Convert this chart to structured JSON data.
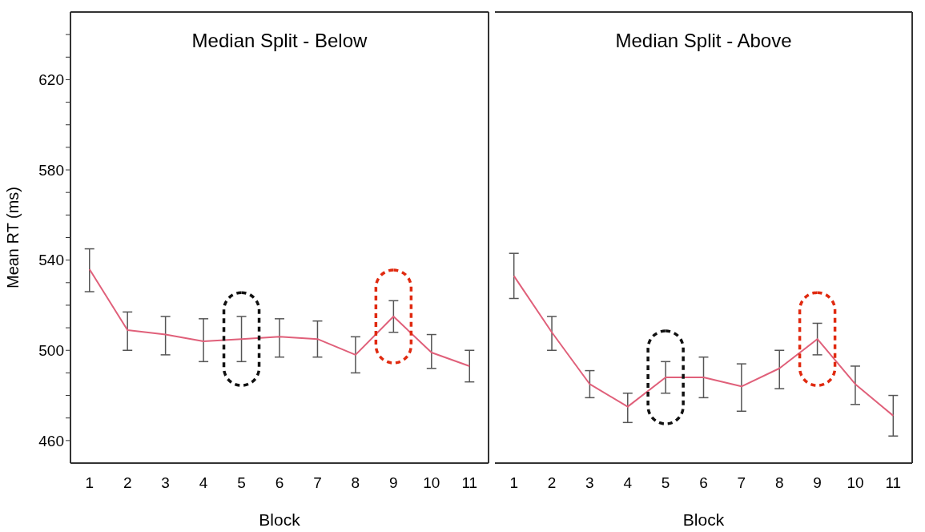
{
  "chart_data": [
    {
      "type": "line",
      "title": "Median Split - Below",
      "xlabel": "Block",
      "ylabel": "Mean RT (ms)",
      "categories": [
        "1",
        "2",
        "3",
        "4",
        "5",
        "6",
        "7",
        "8",
        "9",
        "10",
        "11"
      ],
      "marker": "none",
      "series": [
        {
          "color": "#e0607a",
          "values": [
            536,
            509,
            507,
            504,
            505,
            506,
            505,
            498,
            515,
            499,
            493
          ],
          "errors": [
            [
              526,
              545
            ],
            [
              500,
              517
            ],
            [
              498,
              515
            ],
            [
              495,
              514
            ],
            [
              495,
              515
            ],
            [
              497,
              514
            ],
            [
              497,
              513
            ],
            [
              490,
              506
            ],
            [
              508,
              522
            ],
            [
              492,
              507
            ],
            [
              486,
              500
            ]
          ]
        }
      ],
      "ylim": [
        450,
        650
      ],
      "yticks": [
        {
          "value": 460,
          "label": "460"
        },
        {
          "value": 470,
          "label": null
        },
        {
          "value": 480,
          "label": null
        },
        {
          "value": 490,
          "label": null
        },
        {
          "value": 500,
          "label": "500"
        },
        {
          "value": 510,
          "label": null
        },
        {
          "value": 520,
          "label": null
        },
        {
          "value": 530,
          "label": null
        },
        {
          "value": 540,
          "label": "540"
        },
        {
          "value": 550,
          "label": null
        },
        {
          "value": 560,
          "label": null
        },
        {
          "value": 570,
          "label": null
        },
        {
          "value": 580,
          "label": "580"
        },
        {
          "value": 590,
          "label": null
        },
        {
          "value": 600,
          "label": null
        },
        {
          "value": 610,
          "label": null
        },
        {
          "value": 620,
          "label": "620"
        },
        {
          "value": 630,
          "label": null
        },
        {
          "value": 640,
          "label": null
        }
      ]
    },
    {
      "type": "line",
      "title": "Median Split - Above",
      "xlabel": "Block",
      "categories": [
        "1",
        "2",
        "3",
        "4",
        "5",
        "6",
        "7",
        "8",
        "9",
        "10",
        "11"
      ],
      "marker": "none",
      "tick_labels": "x",
      "series": [
        {
          "color": "#e0607a",
          "values": [
            533,
            508,
            485,
            475,
            488,
            488,
            484,
            492,
            505,
            485,
            471
          ],
          "errors": [
            [
              523,
              543
            ],
            [
              500,
              515
            ],
            [
              479,
              491
            ],
            [
              468,
              481
            ],
            [
              481,
              495
            ],
            [
              479,
              497
            ],
            [
              473,
              494
            ],
            [
              483,
              500
            ],
            [
              498,
              512
            ],
            [
              476,
              493
            ],
            [
              462,
              480
            ]
          ]
        }
      ],
      "ylim": [
        450,
        650
      ]
    }
  ]
}
